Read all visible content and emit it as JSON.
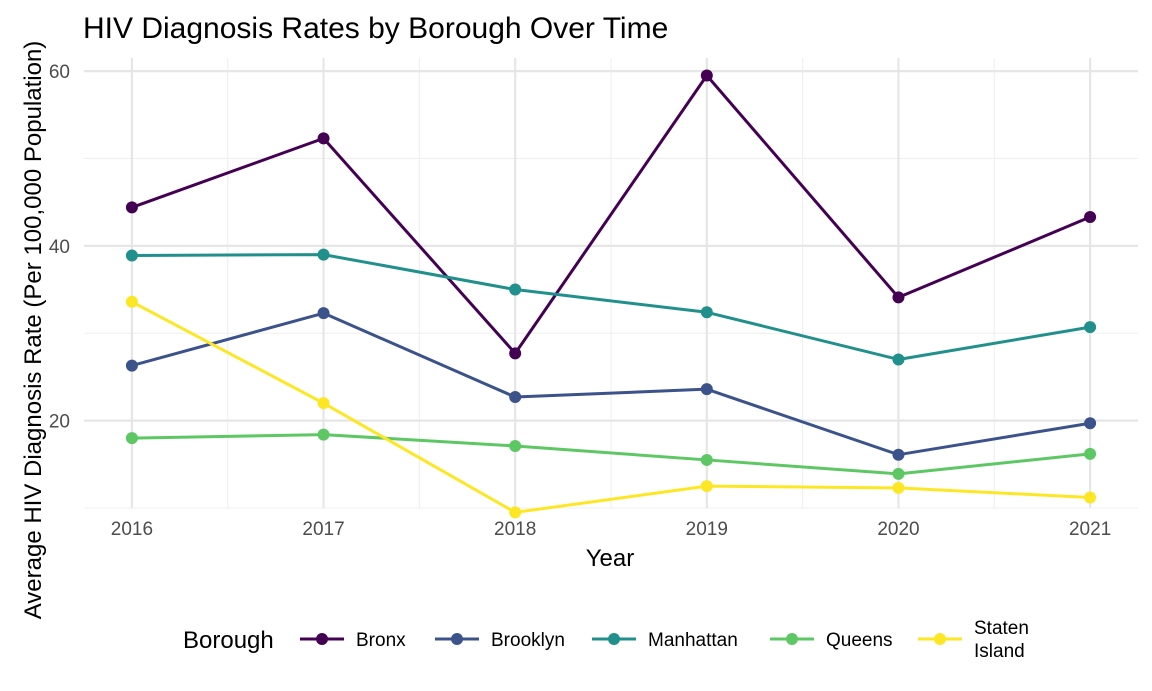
{
  "chart_data": {
    "type": "line",
    "title": "HIV Diagnosis Rates by Borough Over Time",
    "xlabel": "Year",
    "ylabel": "Average HIV Diagnosis Rate (Per 100,000 Population)",
    "x": [
      2016,
      2017,
      2018,
      2019,
      2020,
      2021
    ],
    "x_tick_labels": [
      "2016",
      "2017",
      "2018",
      "2019",
      "2020",
      "2021"
    ],
    "xlim": [
      2015.75,
      2021.25
    ],
    "ylim": [
      10.0,
      61.5
    ],
    "y_ticks": [
      20,
      40,
      60
    ],
    "y_tick_labels": [
      "20",
      "40",
      "60"
    ],
    "grid": true,
    "legend": {
      "title": "Borough",
      "position": "bottom",
      "entries": [
        {
          "label_lines": [
            "Bronx"
          ]
        },
        {
          "label_lines": [
            "Brooklyn"
          ]
        },
        {
          "label_lines": [
            "Manhattan"
          ]
        },
        {
          "label_lines": [
            "Queens"
          ]
        },
        {
          "label_lines": [
            "Staten",
            "Island"
          ]
        }
      ]
    },
    "series": [
      {
        "name": "Bronx",
        "color": "#440154",
        "values": [
          44.4,
          52.3,
          27.7,
          59.5,
          34.1,
          43.3
        ]
      },
      {
        "name": "Brooklyn",
        "color": "#3B528B",
        "values": [
          26.3,
          32.3,
          22.7,
          23.6,
          16.1,
          19.7
        ]
      },
      {
        "name": "Manhattan",
        "color": "#21908C",
        "values": [
          38.9,
          39.0,
          35.0,
          32.4,
          27.0,
          30.7
        ]
      },
      {
        "name": "Queens",
        "color": "#5DC863",
        "values": [
          18.0,
          18.4,
          17.1,
          15.5,
          13.9,
          16.2
        ]
      },
      {
        "name": "Staten Island",
        "color": "#FDE725",
        "values": [
          33.6,
          22.0,
          9.5,
          12.5,
          12.3,
          11.2
        ]
      }
    ]
  }
}
